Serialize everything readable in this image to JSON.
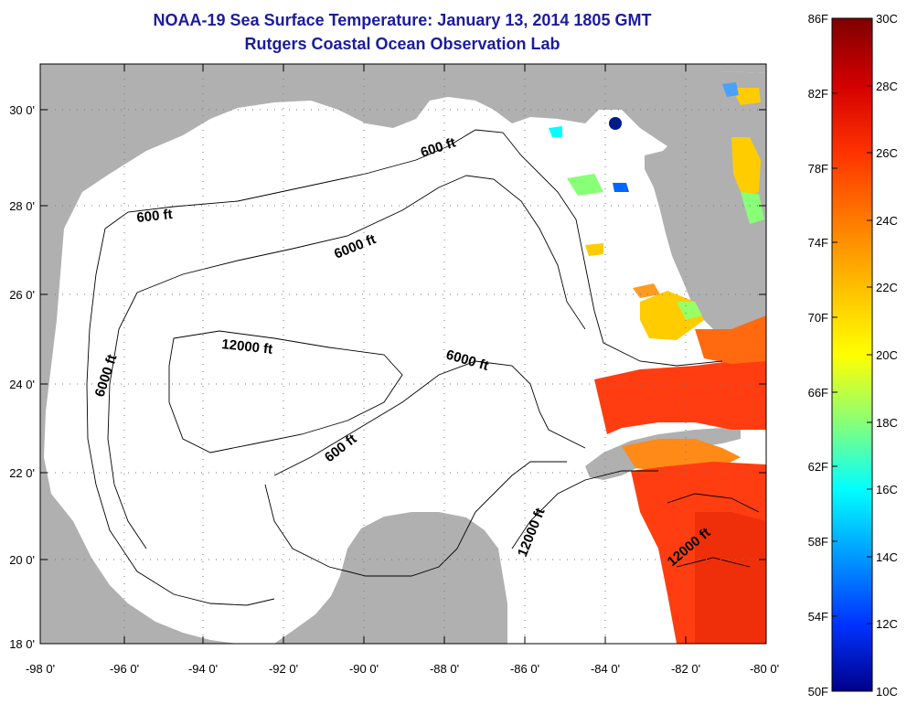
{
  "header": {
    "title": "NOAA-19 Sea Surface Temperature:  January 13, 2014 1805 GMT",
    "subtitle": "Rutgers Coastal Ocean Observation Lab"
  },
  "map": {
    "region": "Gulf of Mexico",
    "lon_range": [
      -98,
      -80
    ],
    "lat_range": [
      18,
      31
    ],
    "x_ticks": [
      "-98 0'",
      "-96 0'",
      "-94 0'",
      "-92 0'",
      "-90 0'",
      "-88 0'",
      "-86 0'",
      "-84 0'",
      "-82 0'",
      "-80 0'"
    ],
    "y_ticks": [
      "30 0'",
      "28 0'",
      "26 0'",
      "24 0'",
      "22 0'",
      "20 0'",
      "18 0'"
    ],
    "grid": "dotted",
    "contour_labels": [
      "600 ft",
      "600 ft",
      "6000 ft",
      "6000 ft",
      "12000 ft",
      "6000 ft",
      "600 ft",
      "12000 ft",
      "12000 ft"
    ],
    "land_color": "#b0b0b0",
    "ocean_nodata_color": "#ffffff"
  },
  "colorbar": {
    "range_F": [
      50,
      86
    ],
    "range_C": [
      10,
      30
    ],
    "f_labels": [
      "86F",
      "82F",
      "78F",
      "74F",
      "70F",
      "66F",
      "62F",
      "58F",
      "54F",
      "50F"
    ],
    "c_labels": [
      "30C",
      "28C",
      "26C",
      "24C",
      "22C",
      "20C",
      "18C",
      "16C",
      "14C",
      "12C",
      "10C"
    ],
    "colors_top_to_bottom": [
      "#7f0000",
      "#d40000",
      "#ff3300",
      "#ff8800",
      "#ffcc00",
      "#ffff00",
      "#88ff77",
      "#00ffff",
      "#0099ff",
      "#0033ff",
      "#00008a"
    ]
  }
}
